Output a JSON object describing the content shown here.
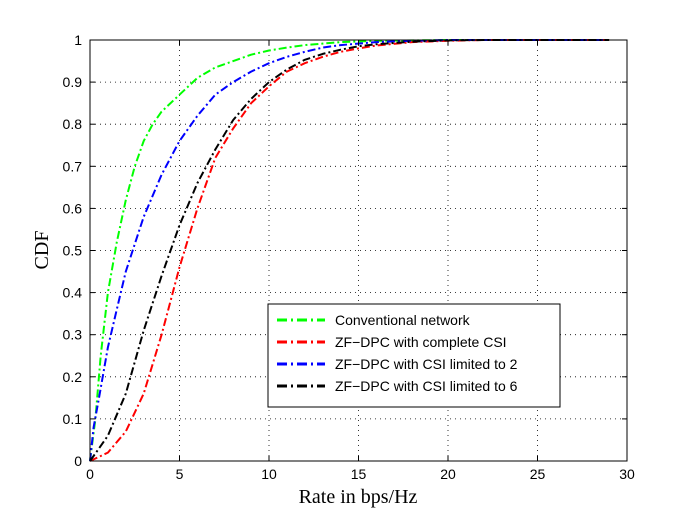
{
  "chart_data": {
    "type": "line",
    "title": "",
    "xlabel": "Rate in bps/Hz",
    "ylabel": "CDF",
    "xlim": [
      0,
      30
    ],
    "ylim": [
      0,
      1
    ],
    "grid": true,
    "legend_position": "lower-right",
    "x_ticks": [
      "0",
      "5",
      "10",
      "15",
      "20",
      "25",
      "30"
    ],
    "y_ticks": [
      "0",
      "0.1",
      "0.2",
      "0.3",
      "0.4",
      "0.5",
      "0.6",
      "0.7",
      "0.8",
      "0.9",
      "1"
    ],
    "series": [
      {
        "name": "Conventional network",
        "color": "#00ff00",
        "x": [
          0,
          0.3,
          0.6,
          1,
          1.5,
          2,
          2.5,
          3,
          3.5,
          4,
          5,
          6,
          7,
          8,
          9,
          10,
          11,
          12,
          14,
          16,
          20,
          25,
          29
        ],
        "y": [
          0,
          0.1,
          0.25,
          0.4,
          0.52,
          0.62,
          0.7,
          0.76,
          0.8,
          0.83,
          0.87,
          0.91,
          0.935,
          0.95,
          0.965,
          0.975,
          0.982,
          0.988,
          0.995,
          0.998,
          1,
          1,
          1
        ]
      },
      {
        "name": "ZF−DPC with complete CSI",
        "color": "#ff0000",
        "x": [
          0,
          0.5,
          1,
          2,
          3,
          4,
          5,
          6,
          7,
          8,
          9,
          10,
          11,
          12,
          13,
          14,
          15,
          16,
          18,
          20,
          22,
          25,
          29
        ],
        "y": [
          0,
          0.01,
          0.02,
          0.07,
          0.16,
          0.3,
          0.46,
          0.6,
          0.72,
          0.79,
          0.85,
          0.89,
          0.925,
          0.945,
          0.96,
          0.972,
          0.98,
          0.987,
          0.995,
          0.998,
          1,
          1,
          1
        ]
      },
      {
        "name": "ZF−DPC with CSI limited to 2",
        "color": "#0000ff",
        "x": [
          0,
          0.2,
          0.5,
          1,
          1.5,
          2,
          3,
          4,
          5,
          6,
          7,
          8,
          9,
          10,
          11,
          12,
          13,
          14,
          16,
          18,
          20,
          25,
          29
        ],
        "y": [
          0,
          0.08,
          0.15,
          0.27,
          0.36,
          0.45,
          0.58,
          0.68,
          0.76,
          0.82,
          0.87,
          0.9,
          0.925,
          0.945,
          0.96,
          0.972,
          0.982,
          0.988,
          0.995,
          0.998,
          1,
          1,
          1
        ]
      },
      {
        "name": "ZF−DPC with CSI limited to 6",
        "color": "#000000",
        "x": [
          0,
          0.5,
          1,
          2,
          3,
          4,
          5,
          6,
          7,
          8,
          9,
          10,
          11,
          12,
          13,
          14,
          15,
          16,
          18,
          20,
          22,
          25,
          29
        ],
        "y": [
          0,
          0.03,
          0.06,
          0.16,
          0.31,
          0.44,
          0.56,
          0.66,
          0.74,
          0.81,
          0.86,
          0.9,
          0.93,
          0.953,
          0.967,
          0.977,
          0.985,
          0.99,
          0.996,
          0.999,
          1,
          1,
          1
        ]
      }
    ]
  }
}
